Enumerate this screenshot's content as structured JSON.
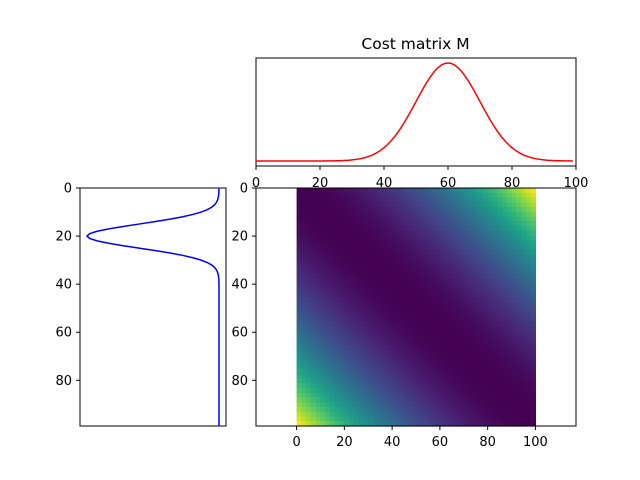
{
  "chart_data": [
    {
      "type": "line",
      "title": "Cost matrix M",
      "description_role": "top marginal: source distribution a (gaussian)",
      "series": [
        {
          "color": "#ff0000",
          "mean": 60,
          "std": 10,
          "samples": 100
        }
      ],
      "xlim": [
        0,
        100
      ],
      "xticks": [
        "0",
        "20",
        "40",
        "60",
        "80",
        "100"
      ],
      "yticks": []
    },
    {
      "type": "line",
      "description_role": "left marginal: target distribution b (gaussian), plotted against inverted index axis",
      "series": [
        {
          "color": "#0000ff",
          "mean": 20,
          "std": 5,
          "samples": 100
        }
      ],
      "ylim": [
        99,
        0
      ],
      "yticks": [
        "0",
        "20",
        "40",
        "60",
        "80"
      ],
      "xticks": []
    },
    {
      "type": "heatmap",
      "colormap": "viridis",
      "matrix": "M[i][j] = (i - j)^2 / max, i,j in 0..99",
      "size": [
        100,
        100
      ],
      "value_range": [
        0,
        1
      ],
      "xticks": [
        "0",
        "20",
        "40",
        "60",
        "80",
        "100"
      ],
      "yticks": [
        "0",
        "20",
        "40",
        "60",
        "80"
      ]
    }
  ]
}
